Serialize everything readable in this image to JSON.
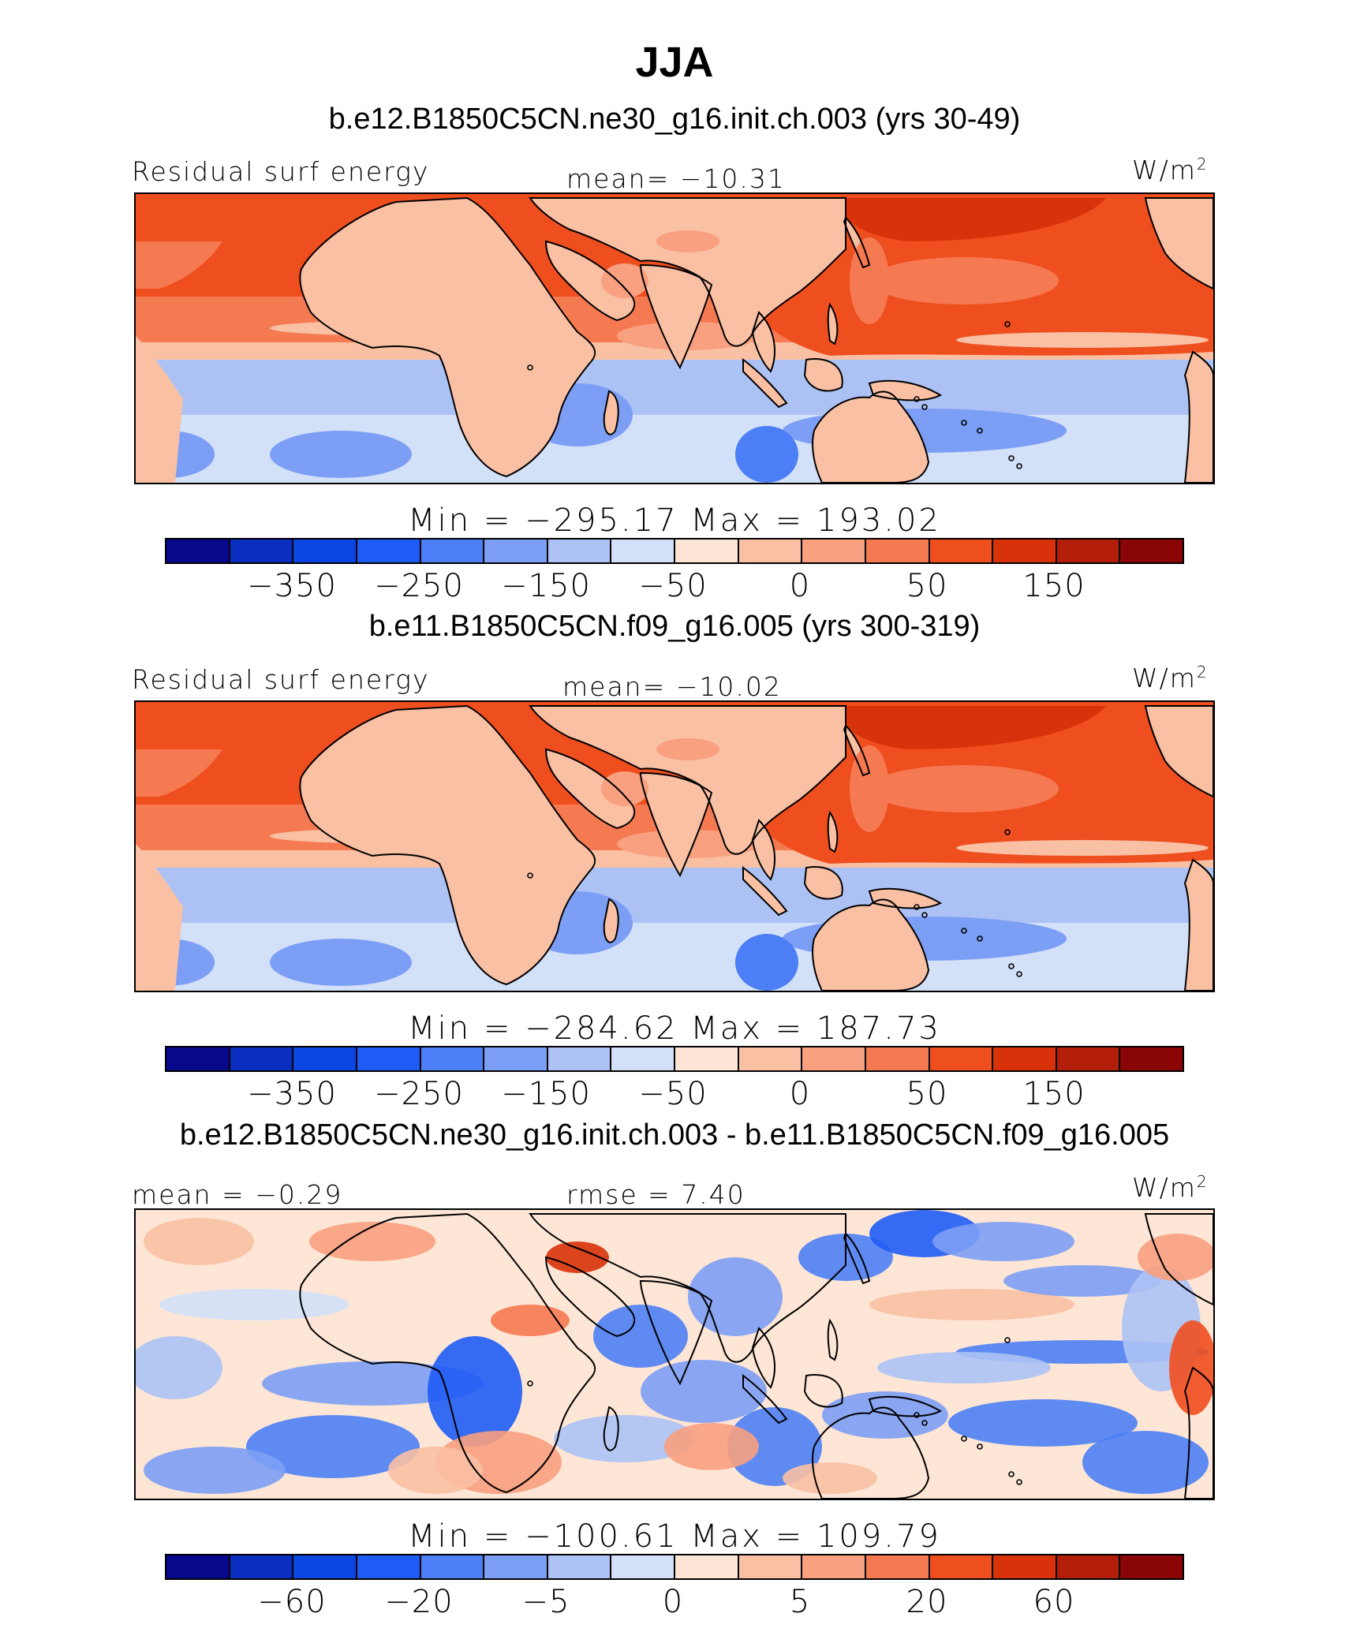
{
  "main_title": "JJA",
  "colors": {
    "scale": [
      "#08088c",
      "#0a2fc0",
      "#0b46e2",
      "#1f5cf5",
      "#4c7ff5",
      "#7d9ef5",
      "#acc2f5",
      "#d2e0f8",
      "#fde6d6",
      "#f9c0a4",
      "#f8a07f",
      "#f57a52",
      "#ef4e1f",
      "#d8320a",
      "#b21e0a",
      "#8a0505"
    ],
    "coast": "#000000"
  },
  "chart_data": [
    {
      "type": "heatmap",
      "title": "b.e12.B1850C5CN.ne30_g16.init.ch.003 (yrs 30-49)",
      "variable": "Residual surf energy",
      "mean_label": "mean= −10.31",
      "units": "W/m",
      "units_exp": "2",
      "minmax": "Min = −295.17 Max = 193.02",
      "colorbar_ticks": [
        "−350",
        "−250",
        "−150",
        "−50",
        "0",
        "50",
        "150"
      ],
      "mean": -10.31,
      "min": -295.17,
      "max": 193.02
    },
    {
      "type": "heatmap",
      "title": "b.e11.B1850C5CN.f09_g16.005 (yrs 300-319)",
      "variable": "Residual surf energy",
      "mean_label": "mean= −10.02",
      "units": "W/m",
      "units_exp": "2",
      "minmax": "Min = −284.62 Max = 187.73",
      "colorbar_ticks": [
        "−350",
        "−250",
        "−150",
        "−50",
        "0",
        "50",
        "150"
      ],
      "mean": -10.02,
      "min": -284.62,
      "max": 187.73
    },
    {
      "type": "heatmap",
      "title": "b.e12.B1850C5CN.ne30_g16.init.ch.003 - b.e11.B1850C5CN.f09_g16.005",
      "mean_label": "mean = −0.29",
      "rmse_label": "rmse = 7.40",
      "units": "W/m",
      "units_exp": "2",
      "minmax": "Min = −100.61 Max = 109.79",
      "colorbar_ticks": [
        "−60",
        "−20",
        "−5",
        "0",
        "5",
        "20",
        "60"
      ],
      "mean": -0.29,
      "rmse": 7.4,
      "min": -100.61,
      "max": 109.79
    }
  ]
}
